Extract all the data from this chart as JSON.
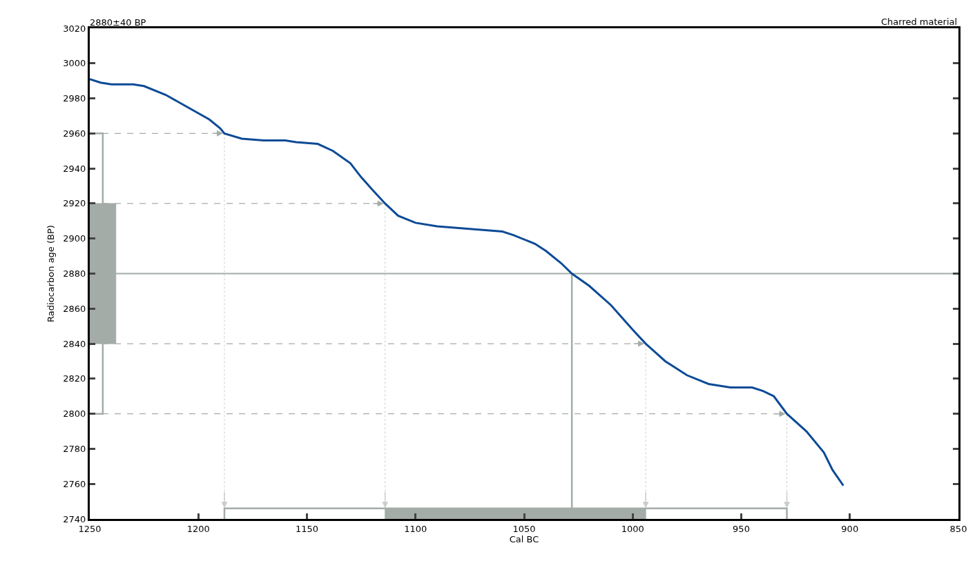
{
  "chart_data": {
    "type": "line",
    "title": "2880±40 BP",
    "xlabel": "Cal BC",
    "ylabel": "Radiocarbon age (BP)",
    "annotations": [
      "Charred material"
    ],
    "x": [
      1250,
      1245,
      1240,
      1230,
      1225,
      1215,
      1205,
      1195,
      1190,
      1188,
      1180,
      1170,
      1160,
      1155,
      1145,
      1138,
      1130,
      1125,
      1120,
      1114,
      1108,
      1100,
      1090,
      1080,
      1070,
      1060,
      1055,
      1045,
      1040,
      1033,
      1028,
      1020,
      1010,
      1000,
      994,
      985,
      975,
      965,
      955,
      945,
      940,
      935,
      929,
      920,
      912,
      908,
      903
    ],
    "series": [
      {
        "color": "#0b4a96",
        "values": [
          2991,
          2989,
          2988,
          2988,
          2987,
          2982,
          2975,
          2968,
          2963,
          2960,
          2957,
          2956,
          2956,
          2955,
          2954,
          2950,
          2943,
          2935,
          2928,
          2920,
          2913,
          2909,
          2907,
          2906,
          2905,
          2904,
          2902,
          2897,
          2893,
          2886,
          2880,
          2873,
          2862,
          2848,
          2840,
          2830,
          2822,
          2817,
          2815,
          2815,
          2813,
          2810,
          2800,
          2790,
          2778,
          2768,
          2759
        ]
      },
      {
        "type": "line",
        "color": "#a4aca8",
        "x": [
          1250,
          1244,
          1244,
          1250
        ],
        "values": [
          2960,
          2960,
          2800,
          2800
        ]
      },
      {
        "type": "area",
        "color": "#a4aca8",
        "x": [
          1250,
          1250,
          1238,
          1238,
          1250
        ],
        "values": [
          2840,
          2920,
          2920,
          2840,
          2840
        ]
      },
      {
        "type": "line",
        "color": "#a4aca8",
        "x": [
          1188,
          1188,
          929,
          929
        ],
        "values": [
          2740,
          2746,
          2746,
          2740
        ]
      },
      {
        "type": "area",
        "color": "#a4aca8",
        "x": [
          1114,
          1114,
          994,
          994,
          1114
        ],
        "values": [
          2740,
          2746,
          2746,
          2740,
          2740
        ]
      }
    ],
    "xlim": [
      1250,
      850
    ],
    "xticks": [
      1250,
      1200,
      1150,
      1100,
      1050,
      1000,
      950,
      900,
      850
    ],
    "ylim": [
      2740,
      3020
    ],
    "yticks": [
      2740,
      2760,
      2780,
      2800,
      2820,
      2840,
      2860,
      2880,
      2900,
      2920,
      2940,
      2960,
      2980,
      3000,
      3020
    ],
    "grid": false,
    "legend": false,
    "ref_lines": [
      {
        "axis": "y",
        "value": 2880,
        "color": "#a4aca8",
        "line_style": "solid"
      },
      {
        "axis": "y",
        "value": 2960,
        "color": "#a4aca8",
        "line_style": "dashed"
      },
      {
        "axis": "y",
        "value": 2920,
        "color": "#a4aca8",
        "line_style": "dashed"
      },
      {
        "axis": "y",
        "value": 2840,
        "color": "#a4aca8",
        "line_style": "dashed"
      },
      {
        "axis": "y",
        "value": 2800,
        "color": "#a4aca8",
        "line_style": "dashed"
      },
      {
        "axis": "x",
        "value": 1028,
        "color": "#a4aca8",
        "line_style": "solid"
      },
      {
        "axis": "x",
        "value": 1188,
        "color": "#c8cecb",
        "line_style": "dotted"
      },
      {
        "axis": "x",
        "value": 1114,
        "color": "#c8cecb",
        "line_style": "dotted"
      },
      {
        "axis": "x",
        "value": 994,
        "color": "#c8cecb",
        "line_style": "dotted"
      },
      {
        "axis": "x",
        "value": 929,
        "color": "#c8cecb",
        "line_style": "dotted"
      }
    ]
  }
}
